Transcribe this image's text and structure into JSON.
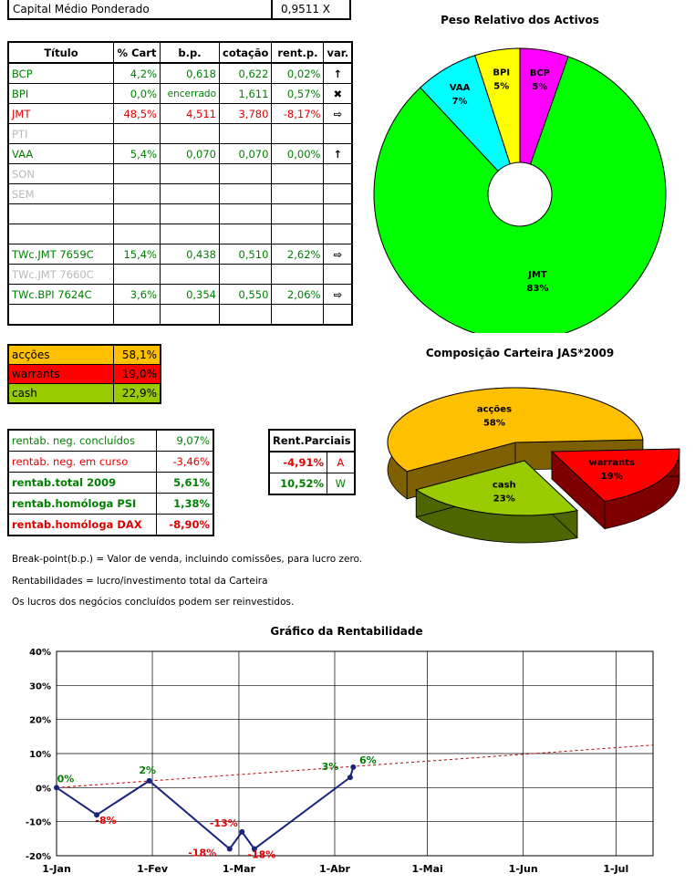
{
  "capital": {
    "label": "Capital Médio Ponderado",
    "value": "0,9511 X"
  },
  "table": {
    "headers": [
      "Título",
      "% Cart",
      "b.p.",
      "cotação",
      "rent.p.",
      "var."
    ],
    "rows": [
      {
        "titulo": "BCP",
        "cart": "4,2%",
        "bp": "0,618",
        "cotacao": "0,622",
        "rent": "0,02%",
        "var": "↑",
        "color": "green"
      },
      {
        "titulo": "BPI",
        "cart": "0,0%",
        "bp": "encerrado",
        "cotacao": "1,611",
        "rent": "0,57%",
        "var": "✖",
        "color": "green"
      },
      {
        "titulo": "JMT",
        "cart": "48,5%",
        "bp": "4,511",
        "cotacao": "3,780",
        "rent": "-8,17%",
        "var": "⇨",
        "color": "red"
      },
      {
        "titulo": "PTI",
        "cart": "",
        "bp": "",
        "cotacao": "",
        "rent": "",
        "var": "",
        "color": "gray"
      },
      {
        "titulo": "VAA",
        "cart": "5,4%",
        "bp": "0,070",
        "cotacao": "0,070",
        "rent": "0,00%",
        "var": "↑",
        "color": "green"
      },
      {
        "titulo": "SON",
        "cart": "",
        "bp": "",
        "cotacao": "",
        "rent": "",
        "var": "",
        "color": "gray"
      },
      {
        "titulo": "SEM",
        "cart": "",
        "bp": "",
        "cotacao": "",
        "rent": "",
        "var": "",
        "color": "gray"
      },
      {
        "titulo": "",
        "cart": "",
        "bp": "",
        "cotacao": "",
        "rent": "",
        "var": "",
        "color": "gray"
      },
      {
        "titulo": "",
        "cart": "",
        "bp": "",
        "cotacao": "",
        "rent": "",
        "var": "",
        "color": "gray"
      },
      {
        "titulo": "TWc.JMT 7659C",
        "cart": "15,4%",
        "bp": "0,438",
        "cotacao": "0,510",
        "rent": "2,62%",
        "var": "⇨",
        "color": "green"
      },
      {
        "titulo": "TWc.JMT 7660C",
        "cart": "",
        "bp": "",
        "cotacao": "",
        "rent": "",
        "var": "",
        "color": "gray"
      },
      {
        "titulo": "TWc.BPI 7624C",
        "cart": "3,6%",
        "bp": "0,354",
        "cotacao": "0,550",
        "rent": "2,06%",
        "var": "⇨",
        "color": "green"
      },
      {
        "titulo": "",
        "cart": "",
        "bp": "",
        "cotacao": "",
        "rent": "",
        "var": "",
        "color": "gray"
      }
    ]
  },
  "allocation": [
    {
      "label": "acções",
      "value": "58,1%",
      "bg": "#ffc000",
      "fg": "#000000"
    },
    {
      "label": "warrants",
      "value": "19,0%",
      "bg": "#ff0000",
      "fg": "#000000"
    },
    {
      "label": "cash",
      "value": "22,9%",
      "bg": "#99cc00",
      "fg": "#000000"
    }
  ],
  "rentab": [
    {
      "label": "rentab. neg. concluídos",
      "value": "9,07%",
      "color": "green",
      "bold": false
    },
    {
      "label": "rentab. neg. em curso",
      "value": "-3,46%",
      "color": "red",
      "bold": false
    },
    {
      "label": "rentab.total 2009",
      "value": "5,61%",
      "color": "green",
      "bold": true
    },
    {
      "label": "rentab.homóloga PSI",
      "value": "1,38%",
      "color": "green",
      "bold": true
    },
    {
      "label": "rentab.homóloga DAX",
      "value": "-8,90%",
      "color": "red",
      "bold": true
    }
  ],
  "parciais": {
    "header": "Rent.Parciais",
    "rows": [
      {
        "value": "-4,91%",
        "tag": "A",
        "color": "red"
      },
      {
        "value": "10,52%",
        "tag": "W",
        "color": "green"
      }
    ]
  },
  "notes": [
    "Break-point(b.p.) = Valor de venda, incluindo comissões, para lucro zero.",
    "Rentabilidades = lucro/investimento total da Carteira",
    "Os lucros dos negócios concluídos podem ser reinvestidos."
  ],
  "chart_data": [
    {
      "type": "pie",
      "title": "Peso Relativo dos Activos",
      "donut": true,
      "slices": [
        {
          "label": "BCP",
          "pct": "5%",
          "value": 5.4,
          "color": "#ff00ff"
        },
        {
          "label": "JMT",
          "pct": "83%",
          "value": 83.0,
          "color": "#00ff00"
        },
        {
          "label": "VAA",
          "pct": "7%",
          "value": 7.0,
          "color": "#00ffff"
        },
        {
          "label": "BPI",
          "pct": "5%",
          "value": 5.0,
          "color": "#ffff00"
        }
      ]
    },
    {
      "type": "pie",
      "title": "Composição Carteira JAS*2009",
      "three_d": true,
      "slices": [
        {
          "label": "acções",
          "pct": "58%",
          "value": 58.1,
          "color": "#ffc000",
          "side": "#7f6000"
        },
        {
          "label": "warrants",
          "pct": "19%",
          "value": 19.0,
          "color": "#ff0000",
          "side": "#7f0000"
        },
        {
          "label": "cash",
          "pct": "23%",
          "value": 22.9,
          "color": "#99cc00",
          "side": "#4d6600"
        }
      ]
    },
    {
      "type": "line",
      "title": "Gráfico da Rentabilidade",
      "x_ticks": [
        "1-Jan",
        "1-Fev",
        "1-Mar",
        "1-Abr",
        "1-Mai",
        "1-Jun",
        "1-Jul"
      ],
      "x_tick_days": [
        0,
        31,
        59,
        90,
        120,
        151,
        181
      ],
      "y_ticks": [
        "40%",
        "30%",
        "20%",
        "10%",
        "0%",
        "-10%",
        "-20%"
      ],
      "ylim": [
        -20,
        40
      ],
      "xlim": [
        0,
        193
      ],
      "series": [
        {
          "color": "#1a237e",
          "points": [
            {
              "day": 0,
              "value": 0,
              "label": "0%"
            },
            {
              "day": 13,
              "value": -8,
              "label": "-8%"
            },
            {
              "day": 30,
              "value": 2,
              "label": "2%"
            },
            {
              "day": 56,
              "value": -18,
              "label": "-18%"
            },
            {
              "day": 60,
              "value": -13,
              "label": "-13%"
            },
            {
              "day": 64,
              "value": -18,
              "label": "-18%"
            },
            {
              "day": 95,
              "value": 3,
              "label": "3%"
            },
            {
              "day": 96,
              "value": 6,
              "label": "6%"
            }
          ]
        }
      ],
      "trend": {
        "color": "#c00000",
        "from": {
          "day": 0,
          "value": 0
        },
        "to": {
          "day": 193,
          "value": 12.5
        }
      },
      "grid": true
    }
  ]
}
